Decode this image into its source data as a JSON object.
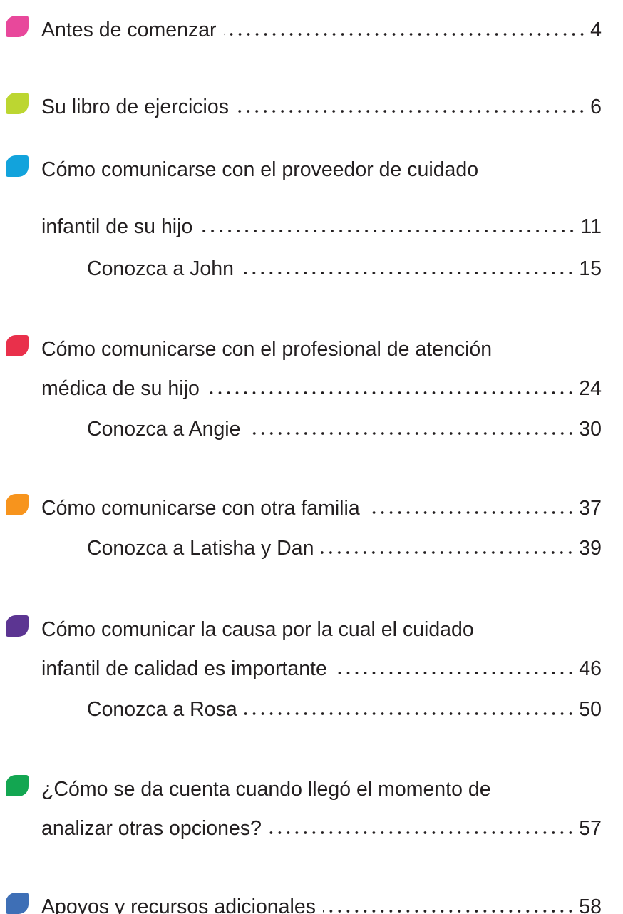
{
  "entries": [
    {
      "color": "#e8489b",
      "lines": [
        "Antes de comenzar"
      ],
      "page": "4",
      "subs": []
    },
    {
      "color": "#bcd631",
      "lines": [
        "Su libro de ejercicios"
      ],
      "page": "6",
      "subs": []
    },
    {
      "color": "#12a3dc",
      "lines": [
        "Cómo comunicarse con el proveedor de cuidado",
        "infantil de su hijo"
      ],
      "page": "11",
      "subs": [
        {
          "title": "Conozca a John",
          "page": "15"
        }
      ]
    },
    {
      "color": "#e9304b",
      "lines": [
        "Cómo comunicarse con el profesional de atención",
        "médica de su hijo"
      ],
      "page": "24",
      "subs": [
        {
          "title": "Conozca a Angie",
          "page": "30"
        }
      ]
    },
    {
      "color": "#f7941d",
      "lines": [
        "Cómo comunicarse con otra familia"
      ],
      "page": "37",
      "subs": [
        {
          "title": "Conozca a Latisha y Dan",
          "page": "39"
        }
      ]
    },
    {
      "color": "#5c3592",
      "lines": [
        "Cómo comunicar la causa por la cual el cuidado",
        "infantil de calidad es importante"
      ],
      "page": "46",
      "subs": [
        {
          "title": "Conozca a Rosa",
          "page": "50"
        }
      ]
    },
    {
      "color": "#13a651",
      "lines": [
        "¿Cómo se da cuenta cuando llegó el momento de",
        "analizar otras opciones?"
      ],
      "page": "57",
      "subs": []
    },
    {
      "color": "#3e6fb6",
      "lines": [
        "Apoyos y recursos adicionales"
      ],
      "page": "58",
      "subs": []
    }
  ]
}
